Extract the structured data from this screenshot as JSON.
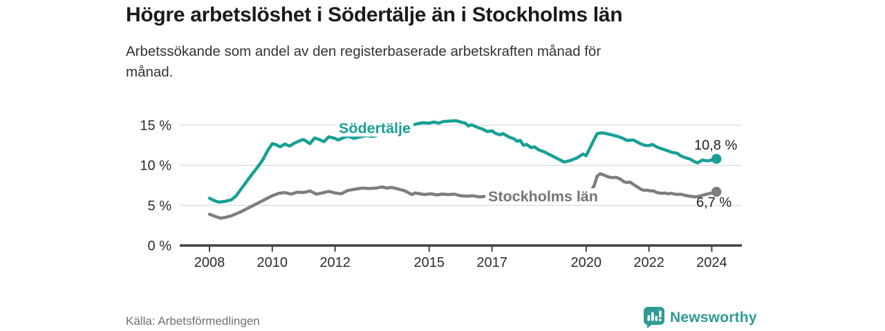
{
  "header": {
    "title": "Högre arbetslöshet i Södertälje än i Stockholms län",
    "subtitle_lines": [
      "Arbetssökande som andel av den registerbaserade arbetskraften månad för",
      "månad."
    ]
  },
  "chart_data": {
    "type": "line",
    "unit": "%",
    "title": "Högre arbetslöshet i Södertälje än i Stockholms län",
    "xlabel": "",
    "ylabel": "Arbetssökande som andel av den registerbaserade arbetskraften",
    "x_range": [
      2008,
      2024.2
    ],
    "ylim": [
      0,
      16
    ],
    "grid": "horizontal",
    "legend_position": "inline-labels",
    "yticks": [
      {
        "v": 0,
        "label": "0 %"
      },
      {
        "v": 5,
        "label": "5 %"
      },
      {
        "v": 10,
        "label": "10 %"
      },
      {
        "v": 15,
        "label": "15 %"
      }
    ],
    "xticks": [
      2008,
      2010,
      2012,
      2015,
      2017,
      2020,
      2022,
      2024
    ],
    "series": [
      {
        "name": "Södertälje",
        "color": "#17A095",
        "end_label": "10,8 %",
        "end_value": 10.8,
        "points": [
          [
            2008.0,
            5.9
          ],
          [
            2008.15,
            5.6
          ],
          [
            2008.3,
            5.4
          ],
          [
            2008.5,
            5.5
          ],
          [
            2008.7,
            5.7
          ],
          [
            2008.85,
            6.2
          ],
          [
            2009.0,
            7.0
          ],
          [
            2009.15,
            7.8
          ],
          [
            2009.3,
            8.6
          ],
          [
            2009.5,
            9.6
          ],
          [
            2009.7,
            10.7
          ],
          [
            2009.85,
            11.8
          ],
          [
            2010.0,
            12.7
          ],
          [
            2010.1,
            12.6
          ],
          [
            2010.25,
            12.3
          ],
          [
            2010.4,
            12.65
          ],
          [
            2010.55,
            12.4
          ],
          [
            2010.7,
            12.75
          ],
          [
            2010.9,
            13.1
          ],
          [
            2011.0,
            13.2
          ],
          [
            2011.2,
            12.7
          ],
          [
            2011.35,
            13.4
          ],
          [
            2011.5,
            13.2
          ],
          [
            2011.65,
            12.95
          ],
          [
            2011.8,
            13.55
          ],
          [
            2012.0,
            13.35
          ],
          [
            2012.1,
            13.15
          ],
          [
            2012.25,
            13.4
          ],
          [
            2012.4,
            13.65
          ],
          [
            2012.6,
            13.35
          ],
          [
            2012.8,
            13.55
          ],
          [
            2013.0,
            13.7
          ],
          [
            2013.2,
            13.6
          ],
          [
            2013.4,
            13.8
          ],
          [
            2013.6,
            14.05
          ],
          [
            2013.8,
            14.3
          ],
          [
            2014.0,
            14.5
          ],
          [
            2014.2,
            14.7
          ],
          [
            2014.4,
            14.95
          ],
          [
            2014.65,
            15.2
          ],
          [
            2014.8,
            15.3
          ],
          [
            2015.0,
            15.25
          ],
          [
            2015.15,
            15.4
          ],
          [
            2015.3,
            15.25
          ],
          [
            2015.45,
            15.45
          ],
          [
            2015.6,
            15.5
          ],
          [
            2015.85,
            15.55
          ],
          [
            2016.0,
            15.4
          ],
          [
            2016.15,
            15.25
          ],
          [
            2016.25,
            14.9
          ],
          [
            2016.35,
            15.05
          ],
          [
            2016.55,
            14.7
          ],
          [
            2016.7,
            14.5
          ],
          [
            2016.85,
            14.2
          ],
          [
            2017.0,
            14.3
          ],
          [
            2017.1,
            14.0
          ],
          [
            2017.25,
            13.8
          ],
          [
            2017.35,
            13.95
          ],
          [
            2017.55,
            13.5
          ],
          [
            2017.7,
            13.3
          ],
          [
            2017.8,
            13.0
          ],
          [
            2017.9,
            13.1
          ],
          [
            2018.0,
            12.5
          ],
          [
            2018.1,
            12.6
          ],
          [
            2018.25,
            12.2
          ],
          [
            2018.35,
            12.3
          ],
          [
            2018.5,
            11.9
          ],
          [
            2018.65,
            11.7
          ],
          [
            2018.8,
            11.4
          ],
          [
            2019.0,
            11.0
          ],
          [
            2019.15,
            10.7
          ],
          [
            2019.3,
            10.4
          ],
          [
            2019.5,
            10.6
          ],
          [
            2019.7,
            10.9
          ],
          [
            2019.9,
            11.4
          ],
          [
            2020.0,
            11.2
          ],
          [
            2020.2,
            12.8
          ],
          [
            2020.35,
            13.95
          ],
          [
            2020.5,
            14.05
          ],
          [
            2020.7,
            13.9
          ],
          [
            2020.85,
            13.75
          ],
          [
            2021.0,
            13.6
          ],
          [
            2021.15,
            13.4
          ],
          [
            2021.3,
            13.1
          ],
          [
            2021.5,
            13.15
          ],
          [
            2021.7,
            12.75
          ],
          [
            2021.85,
            12.5
          ],
          [
            2022.0,
            12.45
          ],
          [
            2022.1,
            12.6
          ],
          [
            2022.3,
            12.2
          ],
          [
            2022.45,
            12.0
          ],
          [
            2022.6,
            11.8
          ],
          [
            2022.75,
            11.6
          ],
          [
            2022.9,
            11.5
          ],
          [
            2023.0,
            11.2
          ],
          [
            2023.15,
            10.95
          ],
          [
            2023.3,
            10.8
          ],
          [
            2023.45,
            10.45
          ],
          [
            2023.55,
            10.3
          ],
          [
            2023.7,
            10.65
          ],
          [
            2023.85,
            10.55
          ],
          [
            2024.0,
            10.65
          ],
          [
            2024.15,
            10.8
          ]
        ]
      },
      {
        "name": "Stockholms län",
        "color": "#7E7E7E",
        "end_label": "6,7 %",
        "end_value": 6.7,
        "points": [
          [
            2008.0,
            3.9
          ],
          [
            2008.2,
            3.6
          ],
          [
            2008.35,
            3.4
          ],
          [
            2008.5,
            3.5
          ],
          [
            2008.7,
            3.7
          ],
          [
            2008.85,
            3.95
          ],
          [
            2009.0,
            4.2
          ],
          [
            2009.2,
            4.6
          ],
          [
            2009.4,
            5.0
          ],
          [
            2009.6,
            5.4
          ],
          [
            2009.8,
            5.8
          ],
          [
            2010.0,
            6.2
          ],
          [
            2010.2,
            6.5
          ],
          [
            2010.4,
            6.6
          ],
          [
            2010.6,
            6.4
          ],
          [
            2010.8,
            6.65
          ],
          [
            2011.0,
            6.6
          ],
          [
            2011.2,
            6.8
          ],
          [
            2011.4,
            6.4
          ],
          [
            2011.6,
            6.55
          ],
          [
            2011.8,
            6.75
          ],
          [
            2012.0,
            6.55
          ],
          [
            2012.2,
            6.45
          ],
          [
            2012.4,
            6.85
          ],
          [
            2012.6,
            7.0
          ],
          [
            2012.85,
            7.15
          ],
          [
            2013.1,
            7.1
          ],
          [
            2013.3,
            7.15
          ],
          [
            2013.5,
            7.3
          ],
          [
            2013.65,
            7.15
          ],
          [
            2013.8,
            7.25
          ],
          [
            2014.0,
            7.05
          ],
          [
            2014.2,
            6.85
          ],
          [
            2014.35,
            6.55
          ],
          [
            2014.45,
            6.35
          ],
          [
            2014.55,
            6.55
          ],
          [
            2014.7,
            6.45
          ],
          [
            2014.85,
            6.35
          ],
          [
            2015.05,
            6.45
          ],
          [
            2015.25,
            6.3
          ],
          [
            2015.4,
            6.4
          ],
          [
            2015.6,
            6.35
          ],
          [
            2015.8,
            6.4
          ],
          [
            2016.0,
            6.2
          ],
          [
            2016.2,
            6.15
          ],
          [
            2016.4,
            6.2
          ],
          [
            2016.6,
            6.05
          ],
          [
            2016.85,
            6.15
          ],
          [
            2017.1,
            6.1
          ],
          [
            2017.4,
            6.0
          ],
          [
            2017.8,
            5.95
          ],
          [
            2018.2,
            5.9
          ],
          [
            2018.6,
            5.9
          ],
          [
            2019.0,
            5.9
          ],
          [
            2019.4,
            5.95
          ],
          [
            2019.7,
            6.0
          ],
          [
            2019.9,
            6.1
          ],
          [
            2020.1,
            6.5
          ],
          [
            2020.25,
            7.4
          ],
          [
            2020.35,
            8.65
          ],
          [
            2020.45,
            8.95
          ],
          [
            2020.55,
            8.8
          ],
          [
            2020.7,
            8.55
          ],
          [
            2020.85,
            8.45
          ],
          [
            2020.95,
            8.5
          ],
          [
            2021.1,
            8.25
          ],
          [
            2021.2,
            7.95
          ],
          [
            2021.3,
            7.85
          ],
          [
            2021.4,
            7.9
          ],
          [
            2021.55,
            7.5
          ],
          [
            2021.65,
            7.25
          ],
          [
            2021.75,
            7.0
          ],
          [
            2021.85,
            6.87
          ],
          [
            2021.95,
            6.9
          ],
          [
            2022.05,
            6.8
          ],
          [
            2022.15,
            6.8
          ],
          [
            2022.25,
            6.6
          ],
          [
            2022.4,
            6.5
          ],
          [
            2022.5,
            6.55
          ],
          [
            2022.6,
            6.45
          ],
          [
            2022.7,
            6.5
          ],
          [
            2022.9,
            6.35
          ],
          [
            2023.0,
            6.4
          ],
          [
            2023.15,
            6.25
          ],
          [
            2023.3,
            6.15
          ],
          [
            2023.5,
            6.05
          ],
          [
            2023.65,
            6.2
          ],
          [
            2023.8,
            6.35
          ],
          [
            2023.95,
            6.5
          ],
          [
            2024.15,
            6.7
          ]
        ]
      }
    ]
  },
  "footer": {
    "source": "Källa: Arbetsförmedlingen",
    "brand": "Newsworthy"
  },
  "colors": {
    "accent_teal": "#17A095",
    "series_gray": "#7E7E7E",
    "axis": "#404040",
    "gridline": "#dcdcdc",
    "title_text": "#1a1a1a",
    "subtitle_text": "#333333",
    "source_text": "#707070",
    "brand_teal": "#2E9B94"
  }
}
